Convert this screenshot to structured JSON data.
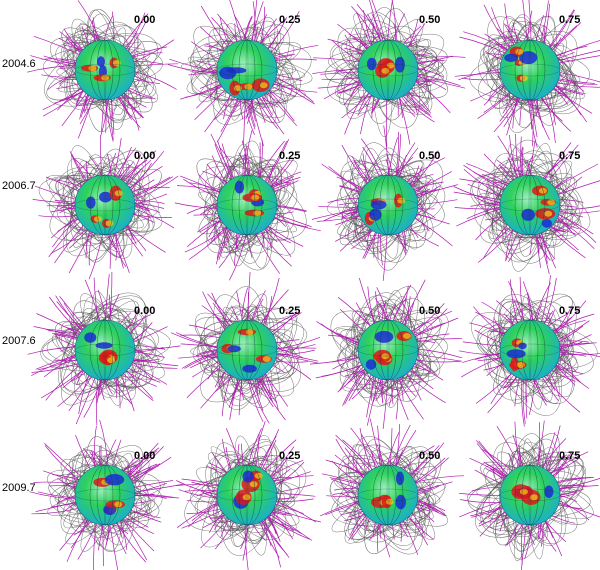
{
  "rows": [
    {
      "epoch": "2004.6",
      "phases": [
        "0.00",
        "0.25",
        "0.50",
        "0.75"
      ]
    },
    {
      "epoch": "2006.7",
      "phases": [
        "0.00",
        "0.25",
        "0.50",
        "0.75"
      ]
    },
    {
      "epoch": "2007.6",
      "phases": [
        "0.00",
        "0.25",
        "0.50",
        "0.75"
      ]
    },
    {
      "epoch": "2009.7",
      "phases": [
        "0.00",
        "0.25",
        "0.50",
        "0.75"
      ]
    }
  ],
  "colors": {
    "open_field_lines": "#b01ab0",
    "closed_field_lines": "#555555",
    "surface_low": "#1a2bd6",
    "surface_mid": "#2fd25a",
    "surface_high": "#e01818"
  }
}
